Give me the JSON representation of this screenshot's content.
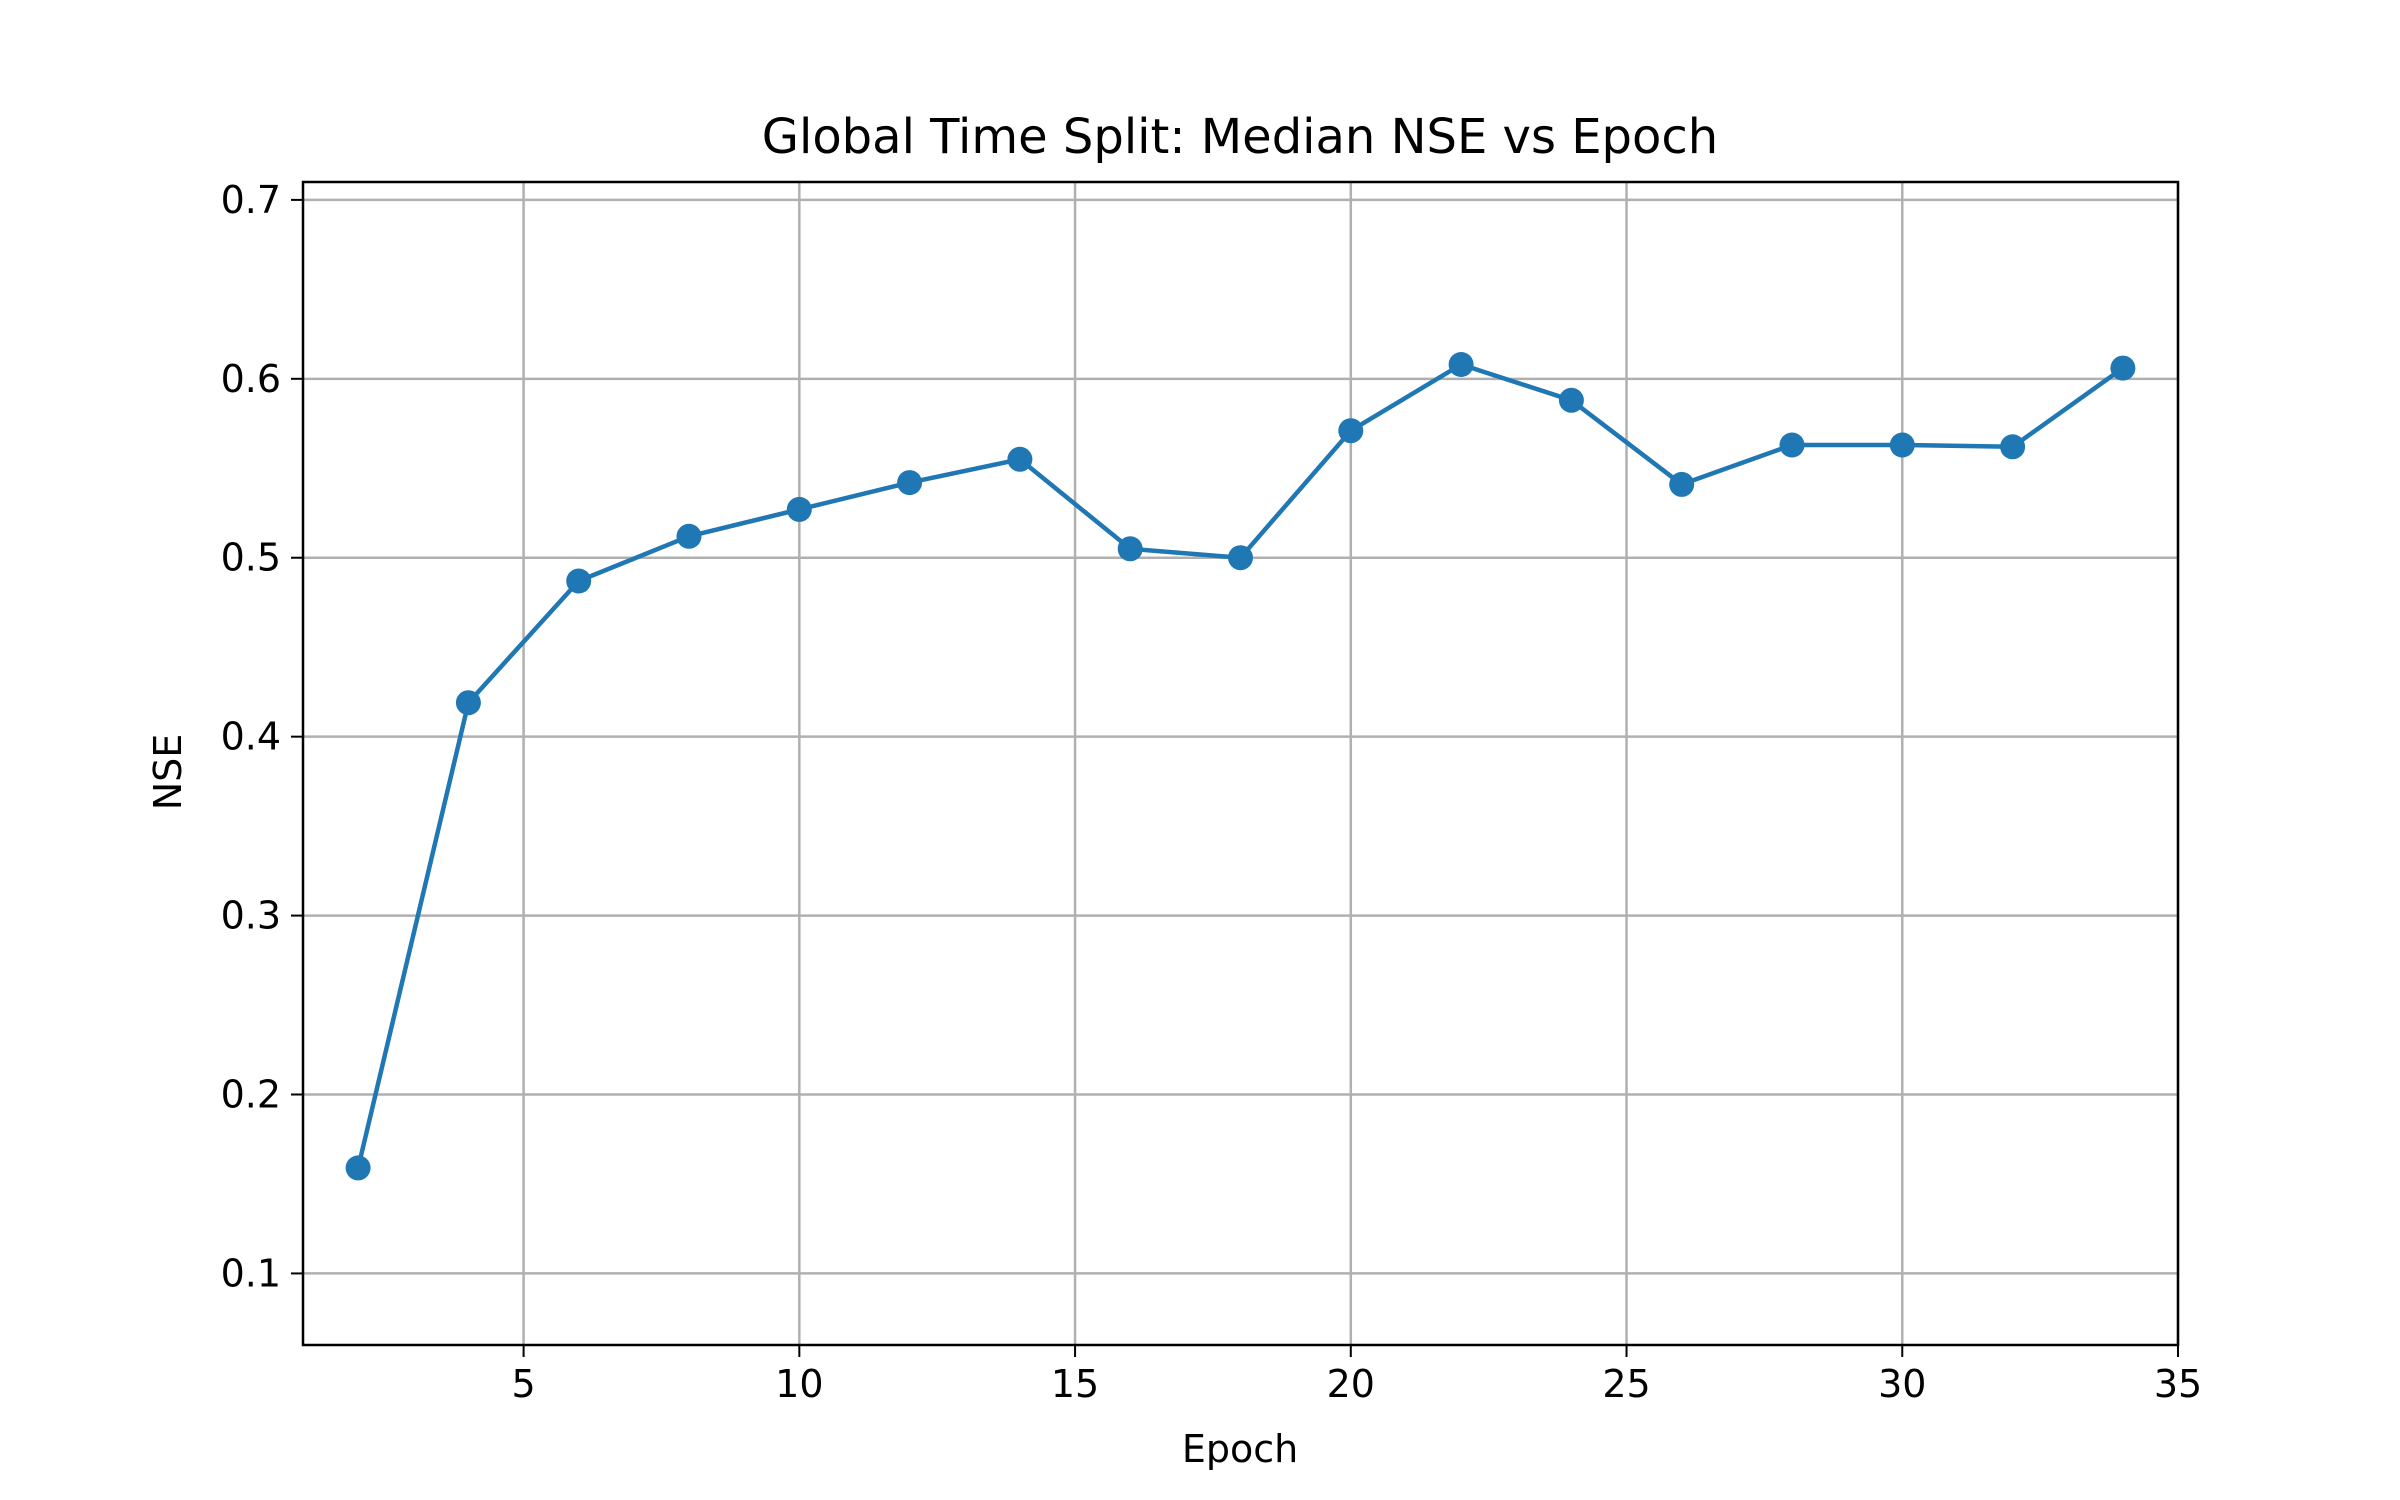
{
  "chart_data": {
    "type": "line",
    "title": "Global Time Split: Median NSE vs Epoch",
    "xlabel": "Epoch",
    "ylabel": "NSE",
    "xlim": [
      1,
      35
    ],
    "ylim": [
      0.06,
      0.71
    ],
    "xticks": [
      5,
      10,
      15,
      20,
      25,
      30,
      35
    ],
    "yticks": [
      0.1,
      0.2,
      0.3,
      0.4,
      0.5,
      0.6,
      0.7
    ],
    "grid": true,
    "legend": "none",
    "colors": {
      "series": "#1f77b4",
      "grid": "#b0b0b0",
      "axes": "#000000"
    },
    "series": [
      {
        "marker": "circle",
        "x": [
          2,
          4,
          6,
          8,
          10,
          12,
          14,
          16,
          18,
          20,
          22,
          24,
          26,
          28,
          30,
          32,
          34
        ],
        "y": [
          0.159,
          0.419,
          0.487,
          0.512,
          0.527,
          0.542,
          0.555,
          0.505,
          0.5,
          0.571,
          0.608,
          0.588,
          0.541,
          0.563,
          0.563,
          0.562,
          0.606
        ]
      }
    ]
  }
}
